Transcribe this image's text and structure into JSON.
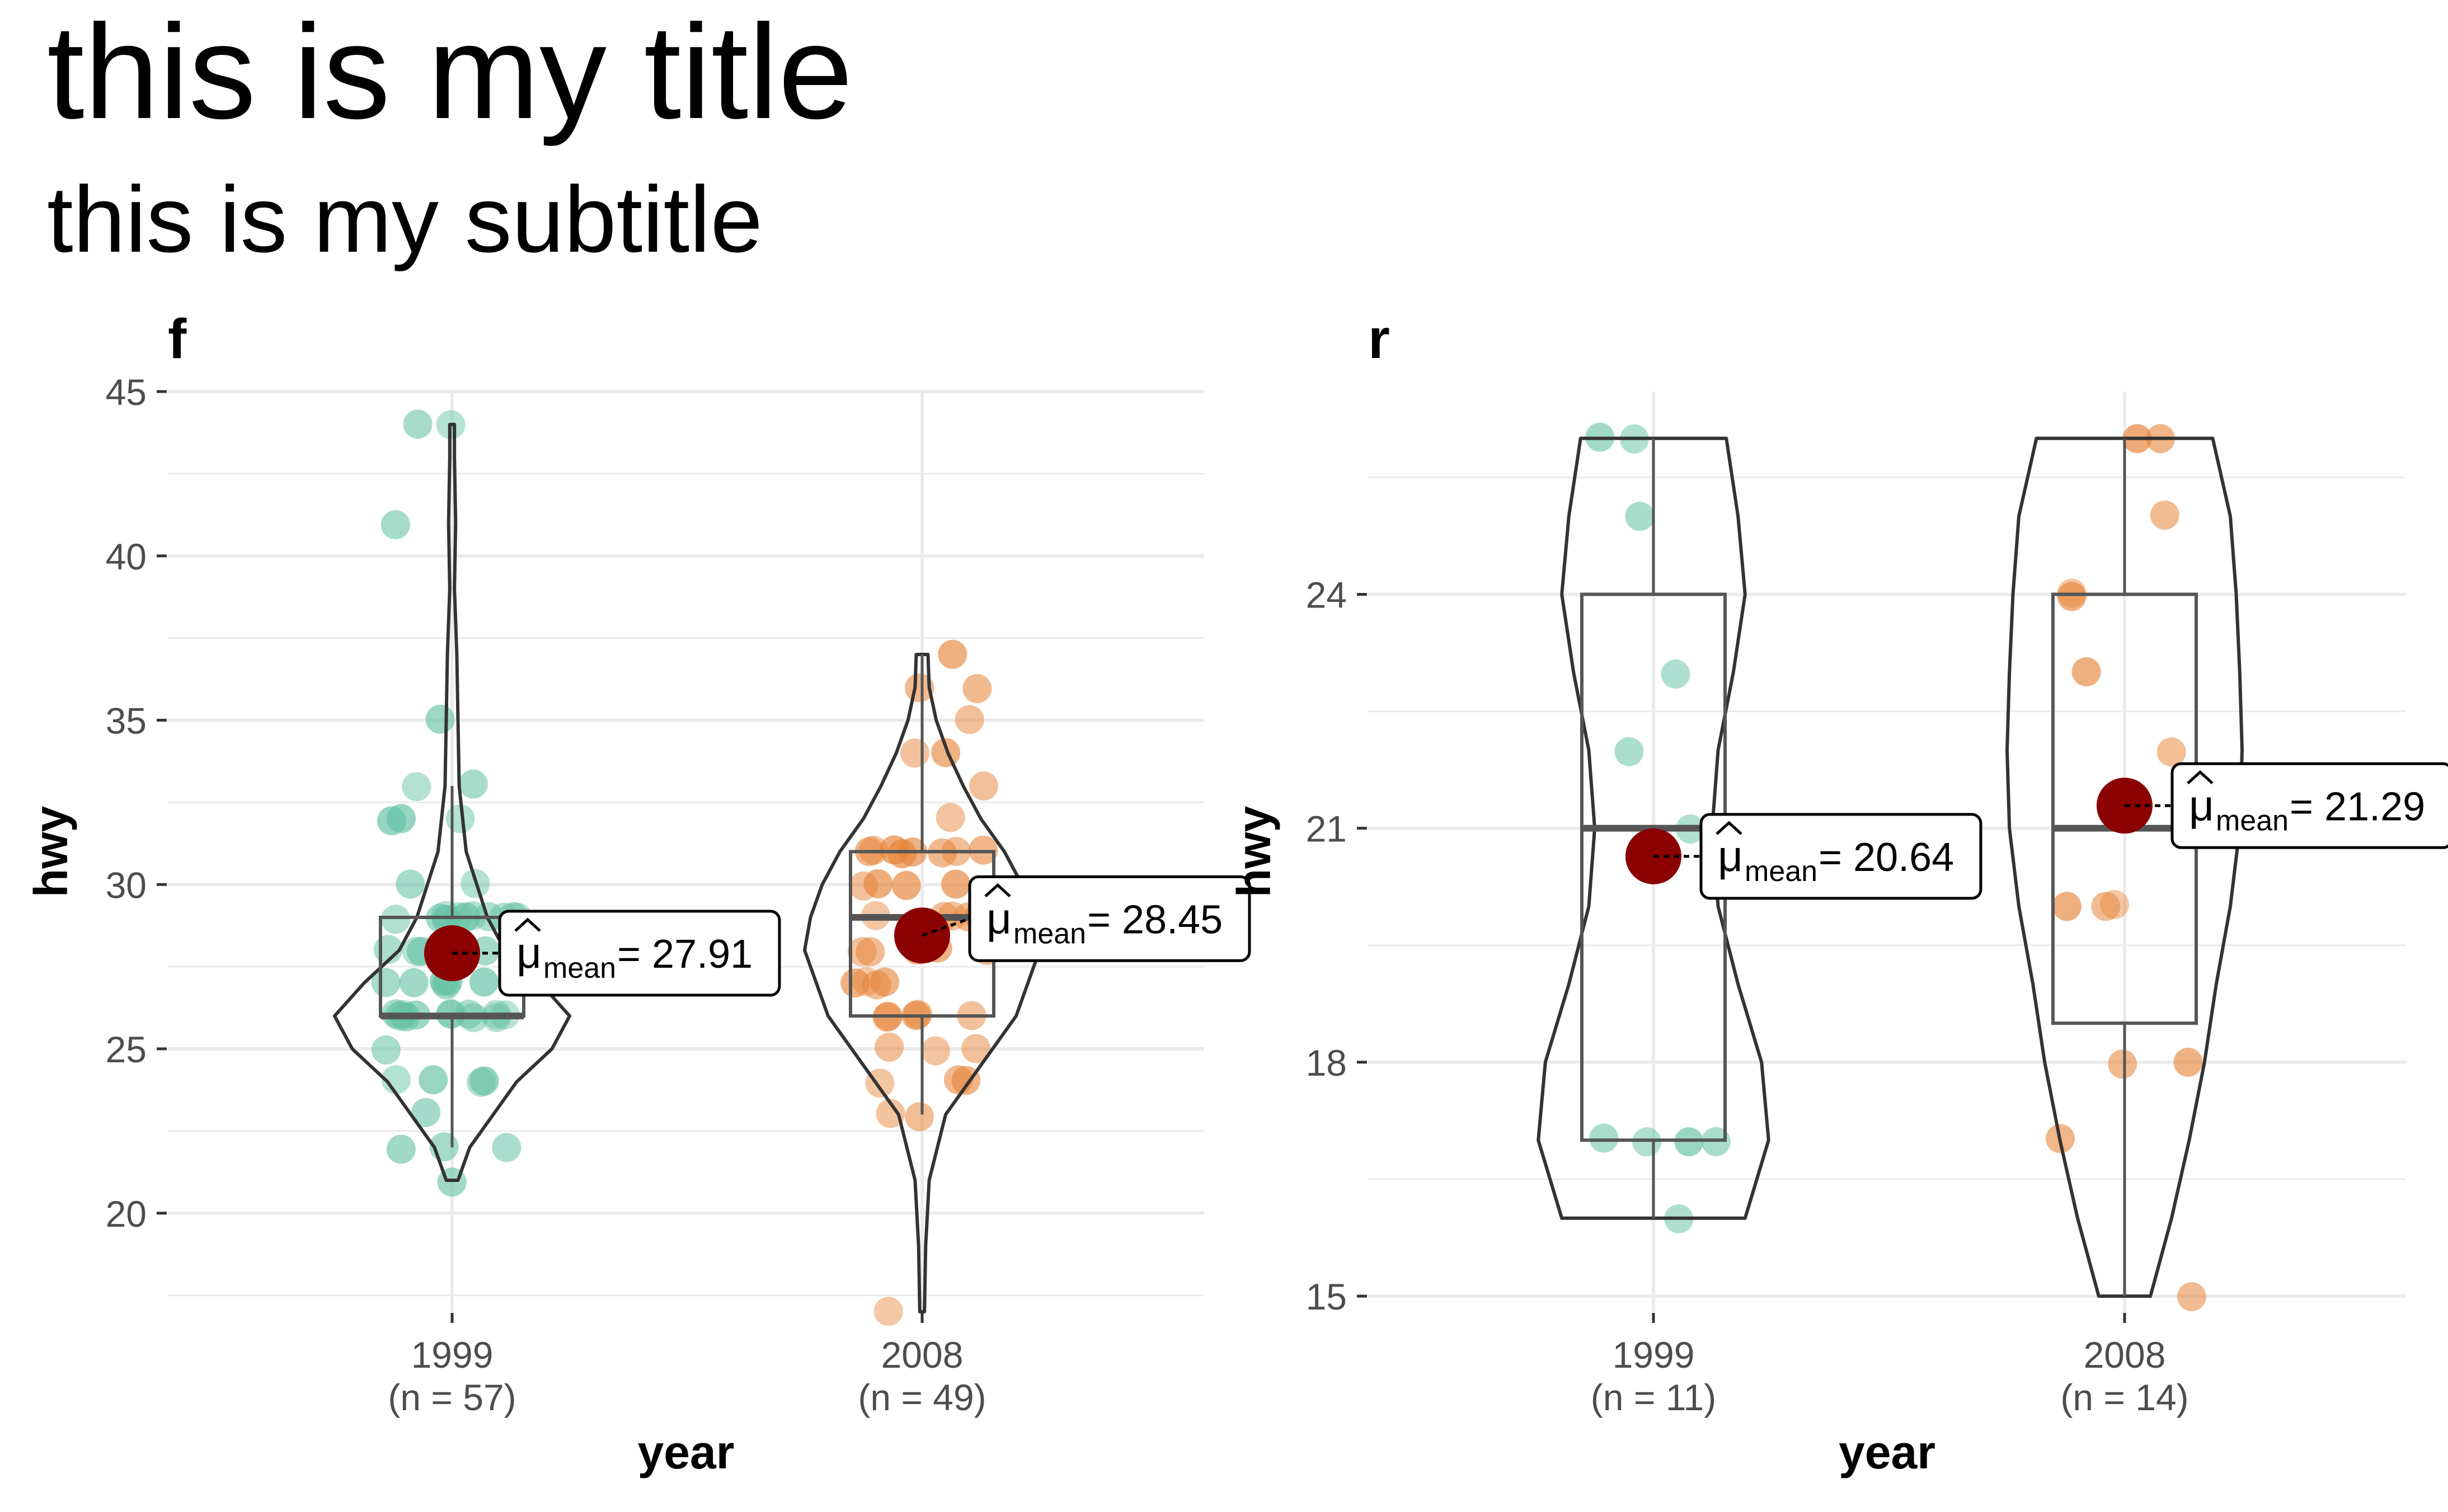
{
  "title": "this is my title",
  "subtitle": "this is my subtitle",
  "colors": {
    "group_1999": "#66c2a5",
    "group_2008": "#e6853a",
    "mean_point": "#8b0000",
    "grid": "#ebebeb",
    "outline": "#333333",
    "box": "#555555"
  },
  "chart_data": [
    {
      "type": "violin-box-scatter",
      "facet": "f",
      "xlabel": "year",
      "ylabel": "hwy",
      "ylim": [
        17,
        45
      ],
      "yticks": [
        20,
        25,
        30,
        35,
        40,
        45
      ],
      "grid": true,
      "categories": [
        "1999",
        "2008"
      ],
      "category_counts": [
        "(n = 57)",
        "(n = 49)"
      ],
      "groups": [
        {
          "name": "1999",
          "box": {
            "lower_whisker": 22,
            "q1": 26,
            "median": 26,
            "q3": 29,
            "upper_whisker": 33
          },
          "mean": 27.91,
          "mean_label": "= 27.91",
          "violin_range": [
            21,
            44
          ],
          "violin_profile": [
            [
              21,
              0.05
            ],
            [
              22,
              0.15
            ],
            [
              23,
              0.35
            ],
            [
              24,
              0.55
            ],
            [
              25,
              0.85
            ],
            [
              26,
              1.0
            ],
            [
              27,
              0.75
            ],
            [
              28,
              0.45
            ],
            [
              29,
              0.3
            ],
            [
              31,
              0.12
            ],
            [
              33,
              0.06
            ],
            [
              35,
              0.05
            ],
            [
              37,
              0.04
            ],
            [
              39,
              0.02
            ],
            [
              41,
              0.03
            ],
            [
              43,
              0.02
            ],
            [
              44,
              0.02
            ]
          ],
          "points": [
            44,
            44,
            41,
            35,
            33,
            33,
            32,
            32,
            32,
            30,
            30,
            29,
            29,
            29,
            29,
            29,
            29,
            29,
            29,
            29,
            29,
            28,
            28,
            28,
            28,
            28,
            28,
            28,
            27,
            27,
            27,
            27,
            27,
            27,
            26,
            26,
            26,
            26,
            26,
            26,
            26,
            26,
            26,
            26,
            26,
            26,
            25,
            24,
            24,
            24,
            24,
            23,
            22,
            22,
            22,
            21,
            29
          ]
        },
        {
          "name": "2008",
          "box": {
            "lower_whisker": 23,
            "q1": 26,
            "median": 29,
            "q3": 31,
            "upper_whisker": 37
          },
          "mean": 28.45,
          "mean_label": "= 28.45",
          "violin_range": [
            17,
            37
          ],
          "violin_profile": [
            [
              17,
              0.02
            ],
            [
              19,
              0.03
            ],
            [
              21,
              0.06
            ],
            [
              23,
              0.2
            ],
            [
              24,
              0.4
            ],
            [
              25,
              0.6
            ],
            [
              26,
              0.8
            ],
            [
              27,
              0.9
            ],
            [
              28,
              1.0
            ],
            [
              29,
              0.95
            ],
            [
              30,
              0.85
            ],
            [
              31,
              0.7
            ],
            [
              32,
              0.5
            ],
            [
              33,
              0.35
            ],
            [
              34,
              0.22
            ],
            [
              35,
              0.12
            ],
            [
              36,
              0.06
            ],
            [
              37,
              0.05
            ]
          ],
          "points": [
            37,
            36,
            36,
            35,
            34,
            34,
            33,
            32,
            31,
            31,
            31,
            31,
            31,
            31,
            31,
            31,
            30,
            30,
            30,
            30,
            29,
            29,
            29,
            29,
            29,
            28,
            28,
            28,
            28,
            28,
            28,
            27,
            27,
            27,
            27,
            26,
            26,
            26,
            26,
            26,
            25,
            25,
            25,
            24,
            24,
            24,
            23,
            23,
            17
          ]
        }
      ]
    },
    {
      "type": "violin-box-scatter",
      "facet": "r",
      "xlabel": "year",
      "ylabel": "hwy",
      "ylim": [
        14.8,
        26.6
      ],
      "yticks": [
        15,
        18,
        21,
        24
      ],
      "grid": true,
      "categories": [
        "1999",
        "2008"
      ],
      "category_counts": [
        "(n = 11)",
        "(n = 14)"
      ],
      "groups": [
        {
          "name": "1999",
          "box": {
            "lower_whisker": 16,
            "q1": 17,
            "median": 21,
            "q3": 24,
            "upper_whisker": 26
          },
          "mean": 20.64,
          "mean_label": "= 20.64",
          "violin_range": [
            16,
            26
          ],
          "violin_profile": [
            [
              16,
              0.78
            ],
            [
              17,
              0.98
            ],
            [
              18,
              0.92
            ],
            [
              19,
              0.72
            ],
            [
              20,
              0.55
            ],
            [
              21,
              0.5
            ],
            [
              22,
              0.55
            ],
            [
              23,
              0.68
            ],
            [
              24,
              0.78
            ],
            [
              25,
              0.72
            ],
            [
              26,
              0.62
            ]
          ],
          "points": [
            26,
            26,
            25,
            23,
            22,
            21,
            17,
            17,
            17,
            17,
            16
          ]
        },
        {
          "name": "2008",
          "box": {
            "lower_whisker": 15,
            "q1": 18.5,
            "median": 21,
            "q3": 24,
            "upper_whisker": 26
          },
          "mean": 21.29,
          "mean_label": "= 21.29",
          "violin_range": [
            15,
            26
          ],
          "violin_profile": [
            [
              15,
              0.22
            ],
            [
              16,
              0.4
            ],
            [
              17,
              0.55
            ],
            [
              18,
              0.68
            ],
            [
              19,
              0.78
            ],
            [
              20,
              0.9
            ],
            [
              21,
              0.98
            ],
            [
              22,
              1.0
            ],
            [
              23,
              0.98
            ],
            [
              24,
              0.95
            ],
            [
              25,
              0.9
            ],
            [
              26,
              0.75
            ]
          ],
          "points": [
            26,
            26,
            25,
            24,
            24,
            23,
            22,
            20,
            20,
            20,
            18,
            18,
            17,
            15
          ]
        }
      ]
    }
  ]
}
